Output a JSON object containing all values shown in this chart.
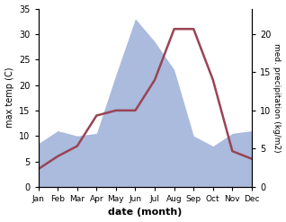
{
  "months": [
    "Jan",
    "Feb",
    "Mar",
    "Apr",
    "May",
    "Jun",
    "Jul",
    "Aug",
    "Sep",
    "Oct",
    "Nov",
    "Dec"
  ],
  "precipitation": [
    8.5,
    11,
    10,
    10.5,
    22,
    33,
    28.5,
    23,
    10,
    8,
    10.5,
    11
  ],
  "temperature": [
    3.5,
    6,
    8,
    14,
    15,
    15,
    21,
    31,
    31,
    21,
    7,
    5.5
  ],
  "temp_ylim": [
    0,
    35
  ],
  "precip_ylim": [
    0,
    35
  ],
  "precip_scale_factor": 0.6667,
  "temp_color": "#994455",
  "precip_color": "#aabbdd",
  "temp_linewidth": 1.8,
  "xlabel": "date (month)",
  "ylabel_left": "max temp (C)",
  "ylabel_right": "med. precipitation (kg/m2)",
  "right_ytick_vals": [
    0,
    5,
    10,
    15,
    20
  ],
  "right_ytick_pos": [
    0,
    7.5,
    15,
    22.5,
    30
  ],
  "left_yticks": [
    0,
    5,
    10,
    15,
    20,
    25,
    30,
    35
  ],
  "bg_color": "#ffffff"
}
